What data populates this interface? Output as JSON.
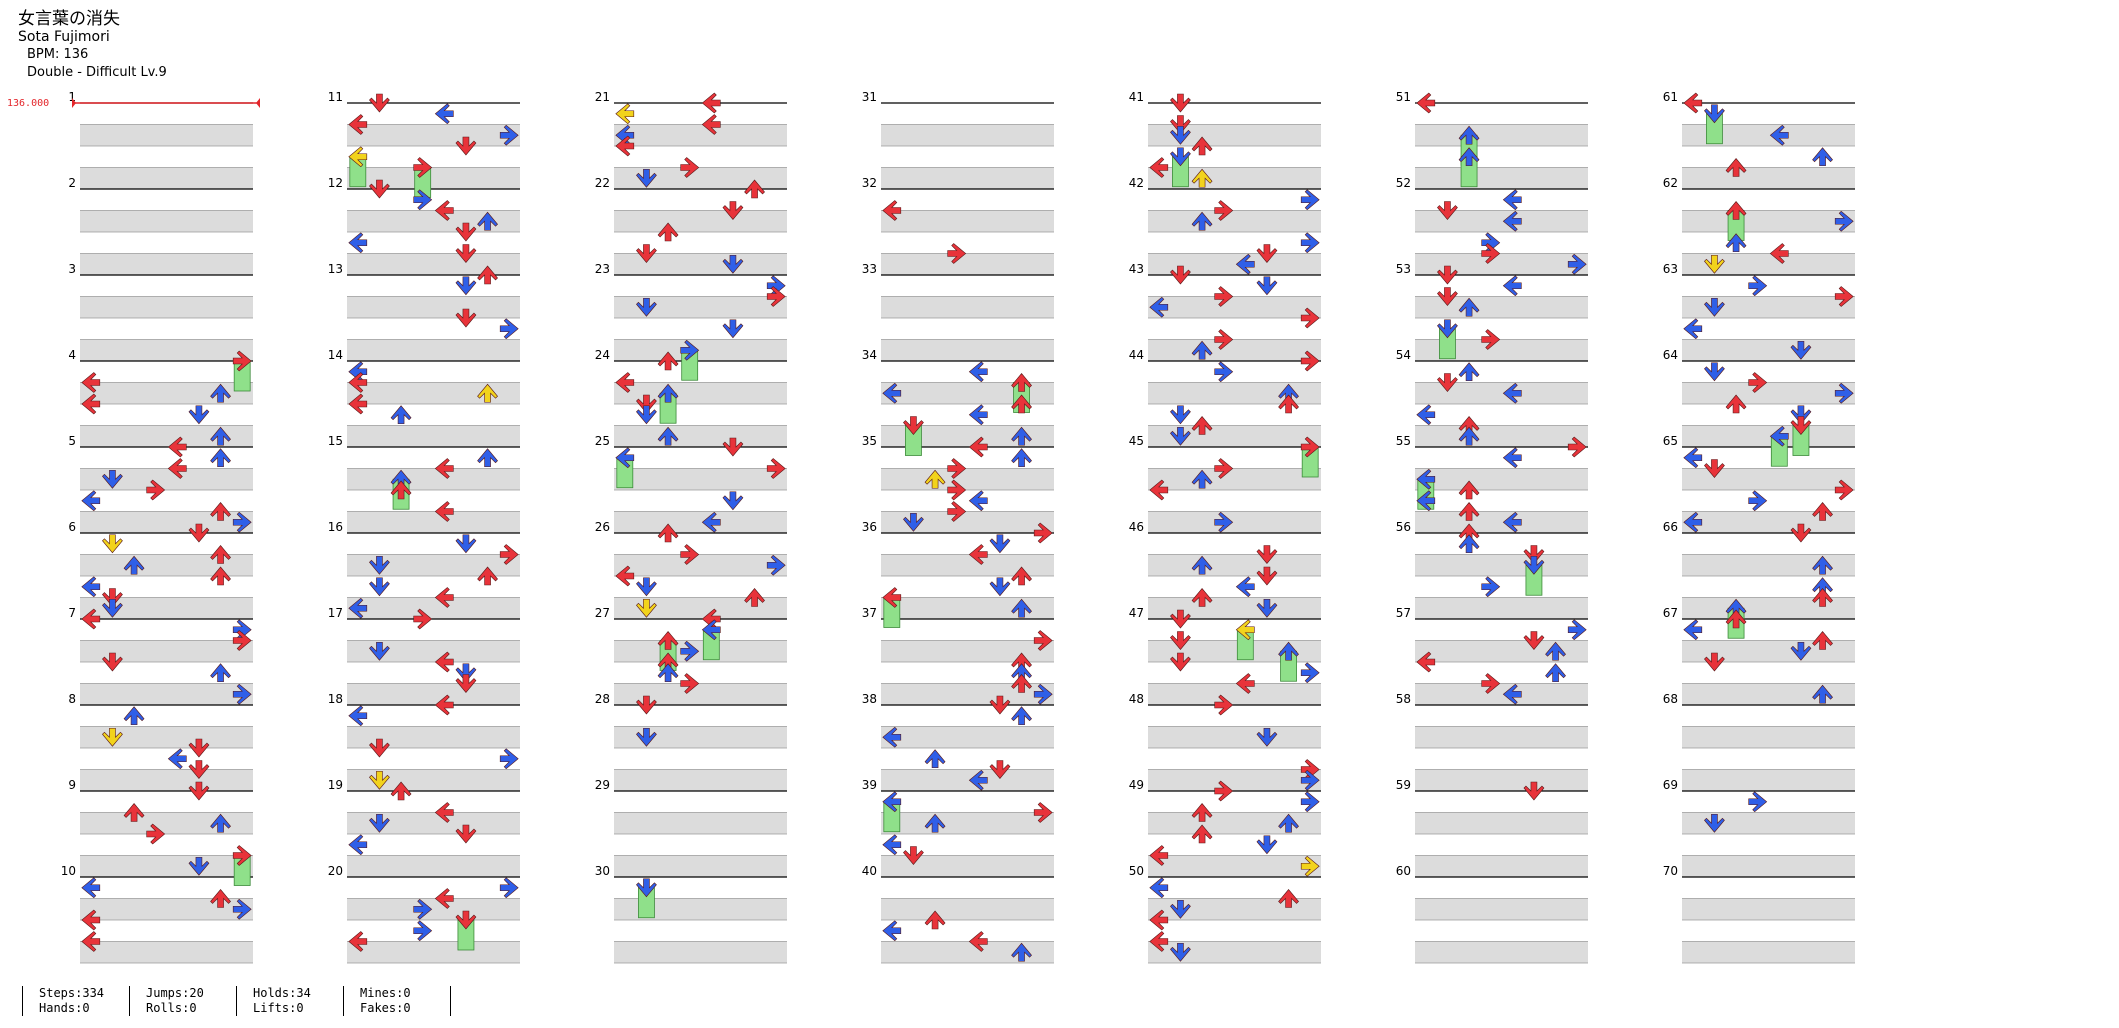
{
  "song": {
    "title": "女言葉の消失",
    "artist": "Sota Fujimori",
    "bpm_line": "BPM: 136",
    "difficulty_line": "Double - Difficult Lv.9",
    "start_bpm_marker": "136.000"
  },
  "measures": [
    "1",
    "2",
    "3",
    "4",
    "5",
    "6",
    "7",
    "8",
    "9",
    "10",
    "11",
    "12",
    "13",
    "14",
    "15",
    "16",
    "17",
    "18",
    "19",
    "20",
    "21",
    "22",
    "23",
    "24",
    "25",
    "26",
    "27",
    "28",
    "29",
    "30",
    "31",
    "32",
    "33",
    "34",
    "35",
    "36",
    "37",
    "38",
    "39",
    "40",
    "41",
    "42",
    "43",
    "44",
    "45",
    "46",
    "47",
    "48",
    "49",
    "50",
    "51",
    "52",
    "53",
    "54",
    "55",
    "56",
    "57",
    "58",
    "59",
    "60",
    "61",
    "62",
    "63",
    "64",
    "65",
    "66",
    "67",
    "68",
    "69",
    "70"
  ],
  "note_colors": {
    "quarter": "#e8333a",
    "eighth": "#2f5fe8",
    "sixteenth": "#f2d31c",
    "hold": "#8fe08a"
  },
  "stats": {
    "col1": [
      "Steps:334",
      "Hands:0"
    ],
    "col2": [
      "Jumps:20",
      "Rolls:0"
    ],
    "col3": [
      "Holds:34",
      "Lifts:0"
    ],
    "col4": [
      "Mines:0",
      "Fakes:0"
    ]
  }
}
